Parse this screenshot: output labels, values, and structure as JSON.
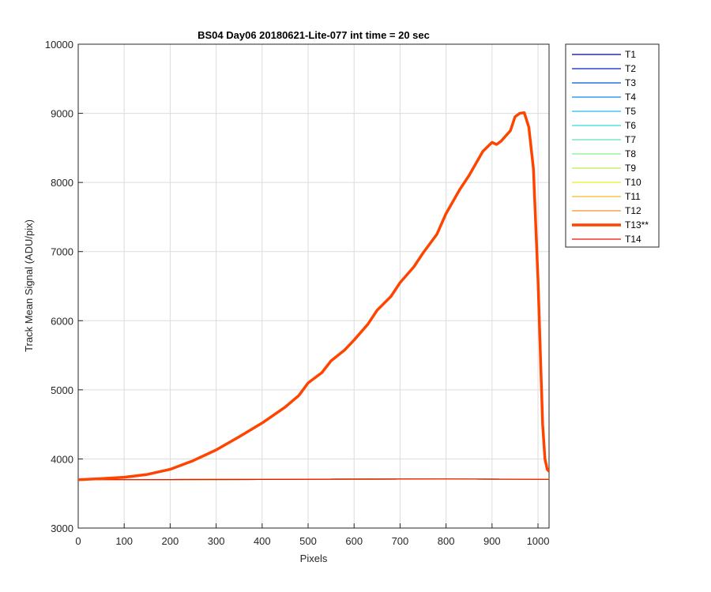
{
  "chart_data": {
    "type": "line",
    "title": "BS04 Day06 20180621-Lite-077 int time = 20 sec",
    "xlabel": "Pixels",
    "ylabel": "Track Mean Signal (ADU/pix)",
    "xlim": [
      0,
      1024
    ],
    "ylim": [
      3000,
      10000
    ],
    "xticks": [
      "0",
      "100",
      "200",
      "300",
      "400",
      "500",
      "600",
      "700",
      "800",
      "900",
      "1000"
    ],
    "yticks": [
      "3000",
      "4000",
      "5000",
      "6000",
      "7000",
      "8000",
      "9000",
      "10000"
    ],
    "grid": true,
    "legend_position": "outside-right",
    "series": [
      {
        "name": "T1",
        "color": "#0000aa",
        "width": 1.2,
        "x": [
          0,
          200,
          400,
          600,
          800,
          1024
        ],
        "y": [
          3700,
          3701,
          3703,
          3708,
          3710,
          3705
        ]
      },
      {
        "name": "T2",
        "color": "#0022cc",
        "width": 1.2,
        "x": [
          0,
          200,
          400,
          600,
          800,
          1024
        ],
        "y": [
          3700,
          3701,
          3703,
          3708,
          3710,
          3705
        ]
      },
      {
        "name": "T3",
        "color": "#0055dd",
        "width": 1.2,
        "x": [
          0,
          200,
          400,
          600,
          800,
          1024
        ],
        "y": [
          3700,
          3701,
          3703,
          3708,
          3710,
          3705
        ]
      },
      {
        "name": "T4",
        "color": "#1188ee",
        "width": 1.2,
        "x": [
          0,
          200,
          400,
          600,
          800,
          1024
        ],
        "y": [
          3700,
          3701,
          3703,
          3708,
          3710,
          3705
        ]
      },
      {
        "name": "T5",
        "color": "#22bbee",
        "width": 1.2,
        "x": [
          0,
          200,
          400,
          600,
          800,
          1024
        ],
        "y": [
          3700,
          3701,
          3703,
          3708,
          3710,
          3705
        ]
      },
      {
        "name": "T6",
        "color": "#33dddd",
        "width": 1.2,
        "x": [
          0,
          200,
          400,
          600,
          800,
          1024
        ],
        "y": [
          3700,
          3701,
          3703,
          3708,
          3710,
          3705
        ]
      },
      {
        "name": "T7",
        "color": "#66ddbb",
        "width": 1.2,
        "x": [
          0,
          200,
          400,
          600,
          800,
          1024
        ],
        "y": [
          3700,
          3701,
          3703,
          3708,
          3710,
          3705
        ]
      },
      {
        "name": "T8",
        "color": "#88ee88",
        "width": 1.2,
        "x": [
          0,
          200,
          400,
          600,
          800,
          1024
        ],
        "y": [
          3700,
          3701,
          3703,
          3708,
          3710,
          3705
        ]
      },
      {
        "name": "T9",
        "color": "#bbee55",
        "width": 1.2,
        "x": [
          0,
          200,
          400,
          600,
          800,
          1024
        ],
        "y": [
          3700,
          3701,
          3703,
          3708,
          3710,
          3705
        ]
      },
      {
        "name": "T10",
        "color": "#eeee22",
        "width": 1.2,
        "x": [
          0,
          200,
          400,
          600,
          800,
          1024
        ],
        "y": [
          3700,
          3701,
          3703,
          3708,
          3710,
          3705
        ]
      },
      {
        "name": "T11",
        "color": "#f2bb22",
        "width": 1.2,
        "x": [
          0,
          200,
          400,
          600,
          800,
          1024
        ],
        "y": [
          3700,
          3701,
          3703,
          3708,
          3710,
          3705
        ]
      },
      {
        "name": "T12",
        "color": "#f59030",
        "width": 1.2,
        "x": [
          0,
          200,
          400,
          600,
          800,
          1024
        ],
        "y": [
          3700,
          3701,
          3703,
          3708,
          3710,
          3705
        ]
      },
      {
        "name": "T13**",
        "color": "#ff4400",
        "width": 3.5,
        "x": [
          0,
          50,
          100,
          150,
          200,
          250,
          300,
          350,
          400,
          450,
          480,
          500,
          530,
          550,
          580,
          600,
          630,
          650,
          680,
          700,
          730,
          750,
          780,
          800,
          830,
          850,
          880,
          900,
          910,
          920,
          940,
          950,
          960,
          970,
          980,
          990,
          1000,
          1010,
          1015,
          1020,
          1024
        ],
        "y": [
          3700,
          3715,
          3735,
          3775,
          3850,
          3975,
          4130,
          4320,
          4520,
          4750,
          4920,
          5100,
          5250,
          5420,
          5580,
          5720,
          5950,
          6150,
          6350,
          6550,
          6780,
          6980,
          7250,
          7550,
          7900,
          8100,
          8450,
          8580,
          8550,
          8600,
          8750,
          8950,
          9000,
          9010,
          8800,
          8200,
          6600,
          4500,
          4000,
          3850,
          3820
        ]
      },
      {
        "name": "T14",
        "color": "#ee1100",
        "width": 1.2,
        "x": [
          0,
          200,
          400,
          600,
          800,
          1024
        ],
        "y": [
          3700,
          3701,
          3703,
          3708,
          3710,
          3705
        ]
      }
    ]
  }
}
